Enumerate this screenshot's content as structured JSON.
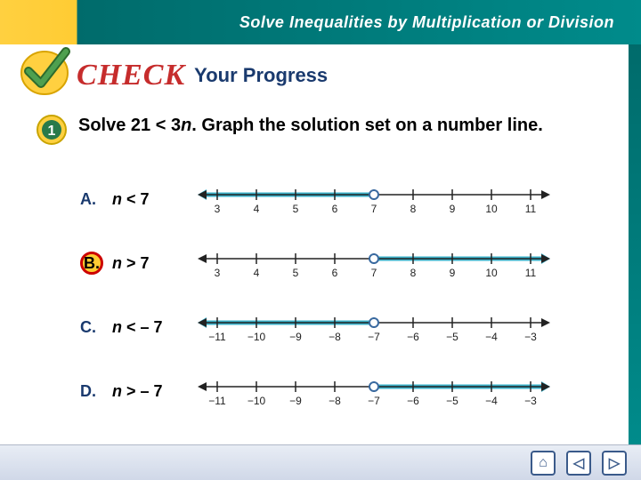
{
  "header": {
    "title": "Solve Inequalities by Multiplication or Division"
  },
  "check": {
    "check_label": "CHECK",
    "your_progress": "Your Progress"
  },
  "question": {
    "bullet_number": "1",
    "text_before": "Solve 21 < 3",
    "var": "n",
    "text_after": ". Graph the solution set on a number line."
  },
  "options": [
    {
      "letter": "A.",
      "var": "n",
      "op": "<",
      "rhs": "7",
      "selected": false,
      "line": {
        "ticks": [
          "3",
          "4",
          "5",
          "6",
          "7",
          "8",
          "9",
          "10",
          "11"
        ],
        "open_at": 4,
        "direction": "left",
        "color": "#3ab0c9"
      }
    },
    {
      "letter": "B.",
      "var": "n",
      "op": ">",
      "rhs": "7",
      "selected": true,
      "line": {
        "ticks": [
          "3",
          "4",
          "5",
          "6",
          "7",
          "8",
          "9",
          "10",
          "11"
        ],
        "open_at": 4,
        "direction": "right",
        "color": "#3ab0c9"
      }
    },
    {
      "letter": "C.",
      "var": "n",
      "op": "<",
      "rhs": "– 7",
      "selected": false,
      "line": {
        "ticks": [
          "−11",
          "−10",
          "−9",
          "−8",
          "−7",
          "−6",
          "−5",
          "−4",
          "−3"
        ],
        "open_at": 4,
        "direction": "left",
        "color": "#3ab0c9"
      }
    },
    {
      "letter": "D.",
      "var": "n",
      "op": ">",
      "rhs": "– 7",
      "selected": false,
      "line": {
        "ticks": [
          "−11",
          "−10",
          "−9",
          "−8",
          "−7",
          "−6",
          "−5",
          "−4",
          "−3"
        ],
        "open_at": 4,
        "direction": "right",
        "color": "#3ab0c9"
      }
    }
  ],
  "nav": {
    "home": "⌂",
    "prev": "◁",
    "next": "▷"
  },
  "style": {
    "axis_color": "#222222",
    "tick_font_size": 12,
    "open_circle_stroke": "#3a6aa0",
    "highlight_width": 5
  }
}
